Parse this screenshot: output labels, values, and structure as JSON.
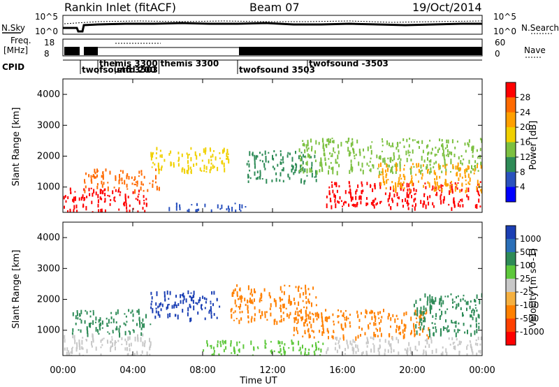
{
  "header": {
    "station": "Rankin Inlet (fitACF)",
    "beam": "Beam 07",
    "date": "19/Oct/2014"
  },
  "top_panels": {
    "nsky_label": "N.Sky",
    "nsearch_label": "N.Search",
    "freq_label_1": "Freq.",
    "freq_label_2": "[MHz]",
    "nave_label": "Nave",
    "cpid_label": "CPID",
    "noise_ticks_left": [
      "10^5",
      "10^0"
    ],
    "noise_ticks_right": [
      "10^5",
      "10^0"
    ],
    "freq_ticks_left": [
      "18",
      "8"
    ],
    "nave_ticks_right": [
      "60",
      "0"
    ],
    "cpid_segments": [
      {
        "label": "twofsound 3503",
        "start": 1.0
      },
      {
        "label": "themis 3300",
        "start": 2.0
      },
      {
        "label": "stfd 200",
        "start": 3.0
      },
      {
        "label": "themis 3300",
        "start": 5.5
      },
      {
        "label": "twofsound 3503",
        "start": 10.0
      },
      {
        "label": "twofsound -3503",
        "start": 14.0
      }
    ]
  },
  "x_axis": {
    "label": "Time UT",
    "ticks": [
      "00:00",
      "04:00",
      "08:00",
      "12:00",
      "16:00",
      "20:00",
      "00:00"
    ]
  },
  "chart_data": [
    {
      "type": "heatmap",
      "title": "Power",
      "ylabel": "Slant Range [km]",
      "xlim_hours": [
        0,
        24
      ],
      "ylim_km": [
        180,
        4500
      ],
      "yticks": [
        "1000",
        "2000",
        "3000",
        "4000"
      ],
      "colorbar_label": "Power [dB]",
      "colorbar_ticks": [
        "28",
        "24",
        "20",
        "16",
        "12",
        "8",
        "4"
      ],
      "colorbar_colors": [
        "#ff0000",
        "#ff6a00",
        "#ffa000",
        "#f0d000",
        "#7cc040",
        "#2e8b57",
        "#2a52be",
        "#0000ff"
      ],
      "regions": [
        {
          "t0": 0.0,
          "t1": 4.8,
          "r0": 200,
          "r1": 1000,
          "level": 0
        },
        {
          "t0": 1.2,
          "t1": 5.5,
          "r0": 900,
          "r1": 1600,
          "level": 1
        },
        {
          "t0": 5.0,
          "t1": 9.5,
          "r0": 1500,
          "r1": 2300,
          "level": 3
        },
        {
          "t0": 6.0,
          "t1": 10.5,
          "r0": 250,
          "r1": 500,
          "level": 6
        },
        {
          "t0": 10.5,
          "t1": 14.5,
          "r0": 1200,
          "r1": 2200,
          "level": 5
        },
        {
          "t0": 13.5,
          "t1": 24.0,
          "r0": 1500,
          "r1": 2600,
          "level": 4
        },
        {
          "t0": 15.0,
          "t1": 24.0,
          "r0": 350,
          "r1": 1200,
          "level": 0
        },
        {
          "t0": 18.0,
          "t1": 24.0,
          "r0": 900,
          "r1": 1800,
          "level": 2
        }
      ]
    },
    {
      "type": "heatmap",
      "title": "Velocity",
      "ylabel": "Slant Range [km]",
      "xlim_hours": [
        0,
        24
      ],
      "ylim_km": [
        180,
        4500
      ],
      "yticks": [
        "1000",
        "2000",
        "3000",
        "4000"
      ],
      "colorbar_label": "Velocity [m s^-1]",
      "colorbar_ticks": [
        "1000",
        "500",
        "100",
        "25",
        "-25",
        "-100",
        "-500",
        "-1000"
      ],
      "colorbar_colors": [
        "#1b3fb4",
        "#2a6fb8",
        "#2e8b57",
        "#5ec83c",
        "#c8c8c8",
        "#f5b040",
        "#ff8000",
        "#ff4000",
        "#ff0000"
      ],
      "regions": [
        {
          "t0": 0.0,
          "t1": 5.0,
          "r0": 200,
          "r1": 900,
          "level": 4
        },
        {
          "t0": 0.5,
          "t1": 5.0,
          "r0": 900,
          "r1": 1700,
          "level": 2
        },
        {
          "t0": 5.0,
          "t1": 9.0,
          "r0": 1400,
          "r1": 2300,
          "level": 0
        },
        {
          "t0": 9.5,
          "t1": 14.5,
          "r0": 1300,
          "r1": 2500,
          "level": 6
        },
        {
          "t0": 13.0,
          "t1": 21.0,
          "r0": 800,
          "r1": 1700,
          "level": 6
        },
        {
          "t0": 20.0,
          "t1": 24.0,
          "r0": 900,
          "r1": 2200,
          "level": 2
        },
        {
          "t0": 8.0,
          "t1": 15.0,
          "r0": 200,
          "r1": 700,
          "level": 3
        },
        {
          "t0": 15.0,
          "t1": 24.0,
          "r0": 250,
          "r1": 800,
          "level": 4
        }
      ]
    }
  ]
}
